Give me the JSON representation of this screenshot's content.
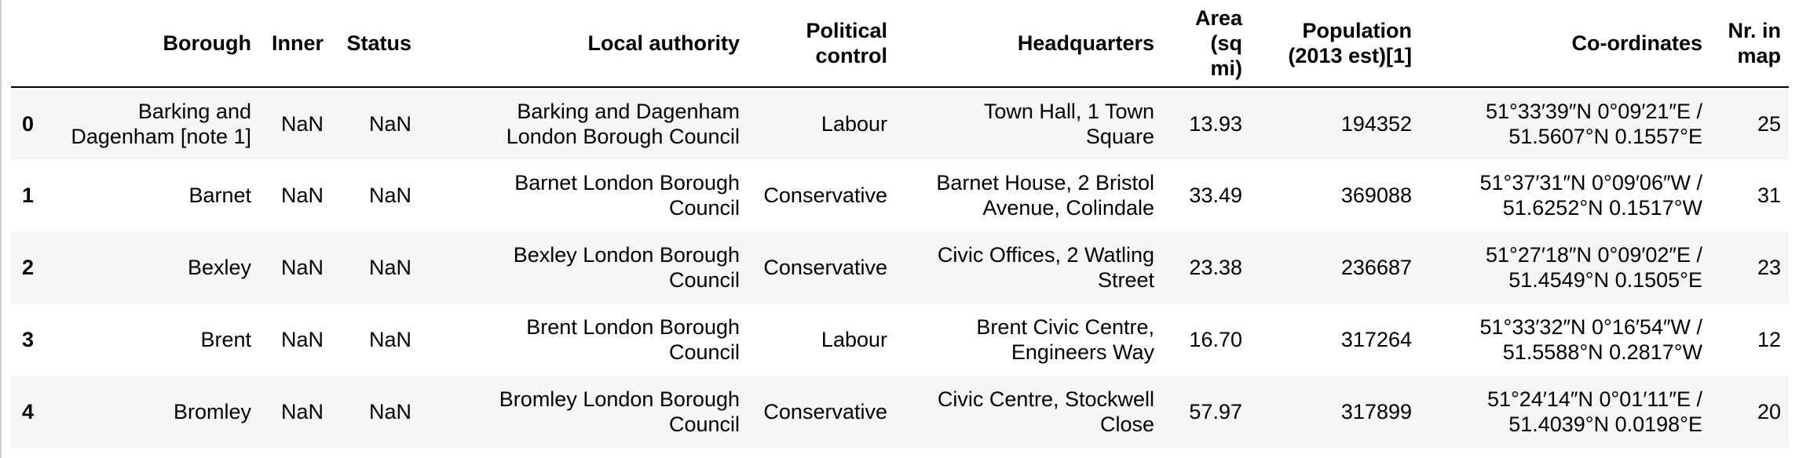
{
  "table": {
    "columns": [
      "Borough",
      "Inner",
      "Status",
      "Local authority",
      "Political control",
      "Headquarters",
      "Area (sq mi)",
      "Population (2013 est)[1]",
      "Co-ordinates",
      "Nr. in map"
    ],
    "header_lines": {
      "borough": "Borough",
      "inner": "Inner",
      "status": "Status",
      "local_authority": "Local authority",
      "political_control": [
        "Political",
        "control"
      ],
      "headquarters": "Headquarters",
      "area": [
        "Area",
        "(sq",
        "mi)"
      ],
      "population": [
        "Population",
        "(2013 est)[1]"
      ],
      "coordinates": "Co-ordinates",
      "nr_in_map": [
        "Nr. in",
        "map"
      ]
    },
    "rows": [
      {
        "index": "0",
        "borough": [
          "Barking and",
          "Dagenham [note 1]"
        ],
        "inner": "NaN",
        "status": "NaN",
        "local_authority": [
          "Barking and Dagenham",
          "London Borough Council"
        ],
        "political_control": "Labour",
        "headquarters": [
          "Town Hall, 1 Town",
          "Square"
        ],
        "area": "13.93",
        "population": "194352",
        "coordinates": [
          "51°33′39″N 0°09′21″E /",
          "51.5607°N 0.1557°E"
        ],
        "nr_in_map": "25"
      },
      {
        "index": "1",
        "borough": [
          "Barnet"
        ],
        "inner": "NaN",
        "status": "NaN",
        "local_authority": [
          "Barnet London Borough",
          "Council"
        ],
        "political_control": "Conservative",
        "headquarters": [
          "Barnet House, 2 Bristol",
          "Avenue, Colindale"
        ],
        "area": "33.49",
        "population": "369088",
        "coordinates": [
          "51°37′31″N 0°09′06″W /",
          "51.6252°N 0.1517°W"
        ],
        "nr_in_map": "31"
      },
      {
        "index": "2",
        "borough": [
          "Bexley"
        ],
        "inner": "NaN",
        "status": "NaN",
        "local_authority": [
          "Bexley London Borough",
          "Council"
        ],
        "political_control": "Conservative",
        "headquarters": [
          "Civic Offices, 2 Watling",
          "Street"
        ],
        "area": "23.38",
        "population": "236687",
        "coordinates": [
          "51°27′18″N 0°09′02″E /",
          "51.4549°N 0.1505°E"
        ],
        "nr_in_map": "23"
      },
      {
        "index": "3",
        "borough": [
          "Brent"
        ],
        "inner": "NaN",
        "status": "NaN",
        "local_authority": [
          "Brent London Borough",
          "Council"
        ],
        "political_control": "Labour",
        "headquarters": [
          "Brent Civic Centre,",
          "Engineers Way"
        ],
        "area": "16.70",
        "population": "317264",
        "coordinates": [
          "51°33′32″N 0°16′54″W /",
          "51.5588°N 0.2817°W"
        ],
        "nr_in_map": "12"
      },
      {
        "index": "4",
        "borough": [
          "Bromley"
        ],
        "inner": "NaN",
        "status": "NaN",
        "local_authority": [
          "Bromley London Borough",
          "Council"
        ],
        "political_control": "Conservative",
        "headquarters": [
          "Civic Centre, Stockwell",
          "Close"
        ],
        "area": "57.97",
        "population": "317899",
        "coordinates": [
          "51°24′14″N 0°01′11″E /",
          "51.4039°N 0.0198°E"
        ],
        "nr_in_map": "20"
      }
    ]
  }
}
